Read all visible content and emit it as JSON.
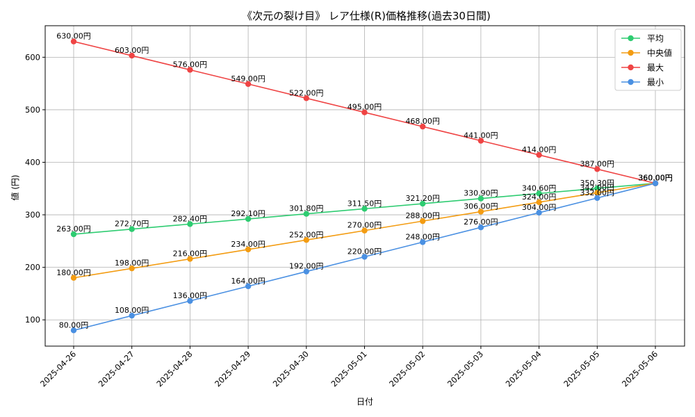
{
  "chart_data": {
    "type": "line",
    "title": "《次元の裂け目》 レア仕様(R)価格推移(過去30日間)",
    "xlabel": "日付",
    "ylabel": "値 (円)",
    "ylim": [
      50,
      660
    ],
    "yticks": [
      100,
      200,
      300,
      400,
      500,
      600
    ],
    "grid": true,
    "legend_position": "top-right",
    "value_suffix": "円",
    "categories": [
      "2025-04-26",
      "2025-04-27",
      "2025-04-28",
      "2025-04-29",
      "2025-04-30",
      "2025-05-01",
      "2025-05-02",
      "2025-05-03",
      "2025-05-04",
      "2025-05-05",
      "2025-05-06"
    ],
    "series": [
      {
        "name": "平均",
        "color": "#2ecc71",
        "values": [
          263.0,
          272.7,
          282.4,
          292.1,
          301.8,
          311.5,
          321.2,
          330.9,
          340.6,
          350.3,
          360.0
        ]
      },
      {
        "name": "中央値",
        "color": "#f39c12",
        "values": [
          180.0,
          198.0,
          216.0,
          234.0,
          252.0,
          270.0,
          288.0,
          306.0,
          324.0,
          342.0,
          360.0
        ]
      },
      {
        "name": "最大",
        "color": "#ef4444",
        "values": [
          630.0,
          603.0,
          576.0,
          549.0,
          522.0,
          495.0,
          468.0,
          441.0,
          414.0,
          387.0,
          360.0
        ]
      },
      {
        "name": "最小",
        "color": "#4a90e2",
        "values": [
          80.0,
          108.0,
          136.0,
          164.0,
          192.0,
          220.0,
          248.0,
          276.0,
          304.0,
          332.0,
          360.0
        ]
      }
    ]
  }
}
